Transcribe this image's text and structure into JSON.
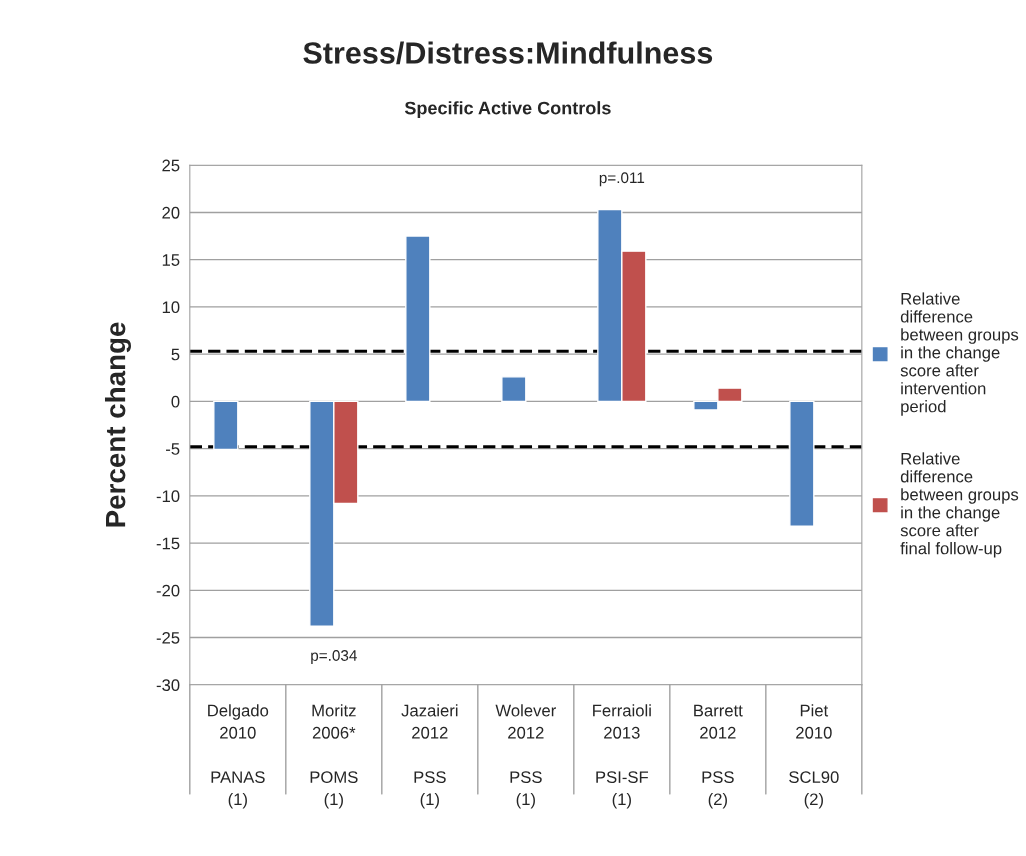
{
  "chart_data": {
    "type": "bar",
    "title": "Stress/Distress:Mindfulness",
    "subtitle": "Specific Active Controls",
    "ylabel": "Percent change",
    "categories": [
      "Delgado\n2010\n\nPANAS\n(1)",
      "Moritz\n2006*\n\nPOMS\n(1)",
      "Jazaieri\n2012\n\nPSS\n(1)",
      "Wolever\n2012\n\nPSS\n(1)",
      "Ferraioli\n2013\n\nPSI-SF\n(1)",
      "Barrett\n2012\n\nPSS\n(2)",
      "Piet\n2010\n\nSCL90\n(2)"
    ],
    "series": [
      {
        "name": "Relative difference between groups in the change score after intervention period",
        "color": "#4f81bd",
        "values": [
          -5.1,
          -23.8,
          17.5,
          2.6,
          20.3,
          -0.9,
          -13.2
        ]
      },
      {
        "name": "Relative difference between groups in the change score after final follow-up",
        "color": "#c0504d",
        "values": [
          null,
          -10.8,
          null,
          null,
          15.9,
          1.4,
          null
        ]
      }
    ],
    "ylim": [
      -30,
      25
    ],
    "yticks": [
      -30,
      -25,
      -20,
      -15,
      -10,
      -5,
      0,
      5,
      10,
      15,
      20,
      25
    ],
    "grid": "y",
    "legend": "right",
    "ref_lines": [
      {
        "axis": "y",
        "value": 5.3,
        "color": "#000000",
        "line_style": "dashed"
      },
      {
        "axis": "y",
        "value": -4.8,
        "color": "#000000",
        "line_style": "dashed"
      }
    ],
    "annotations": [
      "p=.034",
      "p=.011"
    ]
  }
}
